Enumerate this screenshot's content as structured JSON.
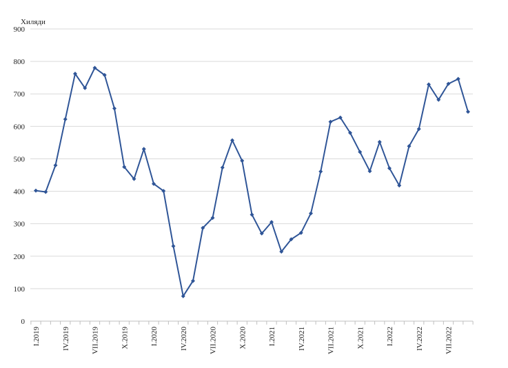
{
  "chart_data": {
    "type": "line",
    "unit_label": "Хиляди",
    "ylim": [
      0,
      900
    ],
    "yticks": [
      0,
      100,
      200,
      300,
      400,
      500,
      600,
      700,
      800,
      900
    ],
    "grid": true,
    "legend": "none",
    "line_color": "#2F5597",
    "grid_color": "#d9d9d9",
    "x_tick_labels": [
      {
        "index": 0,
        "label": "I.2019"
      },
      {
        "index": 3,
        "label": "IV.2019"
      },
      {
        "index": 6,
        "label": "VII.2019"
      },
      {
        "index": 9,
        "label": "X.2019"
      },
      {
        "index": 12,
        "label": "I.2020"
      },
      {
        "index": 15,
        "label": "IV.2020"
      },
      {
        "index": 18,
        "label": "VII.2020"
      },
      {
        "index": 21,
        "label": "X.2020"
      },
      {
        "index": 24,
        "label": "I.2021"
      },
      {
        "index": 27,
        "label": "IV.2021"
      },
      {
        "index": 30,
        "label": "VII.2021"
      },
      {
        "index": 33,
        "label": "X.2021"
      },
      {
        "index": 36,
        "label": "I.2022"
      },
      {
        "index": 39,
        "label": "IV.2022"
      },
      {
        "index": 42,
        "label": "VII.2022"
      }
    ],
    "values": [
      402,
      398,
      480,
      622,
      762,
      718,
      780,
      758,
      655,
      475,
      438,
      530,
      423,
      401,
      231,
      77,
      124,
      287,
      318,
      473,
      557,
      494,
      328,
      270,
      305,
      214,
      252,
      272,
      332,
      461,
      614,
      627,
      580,
      521,
      462,
      552,
      471,
      418,
      539,
      592,
      729,
      682,
      731,
      746,
      645
    ]
  }
}
